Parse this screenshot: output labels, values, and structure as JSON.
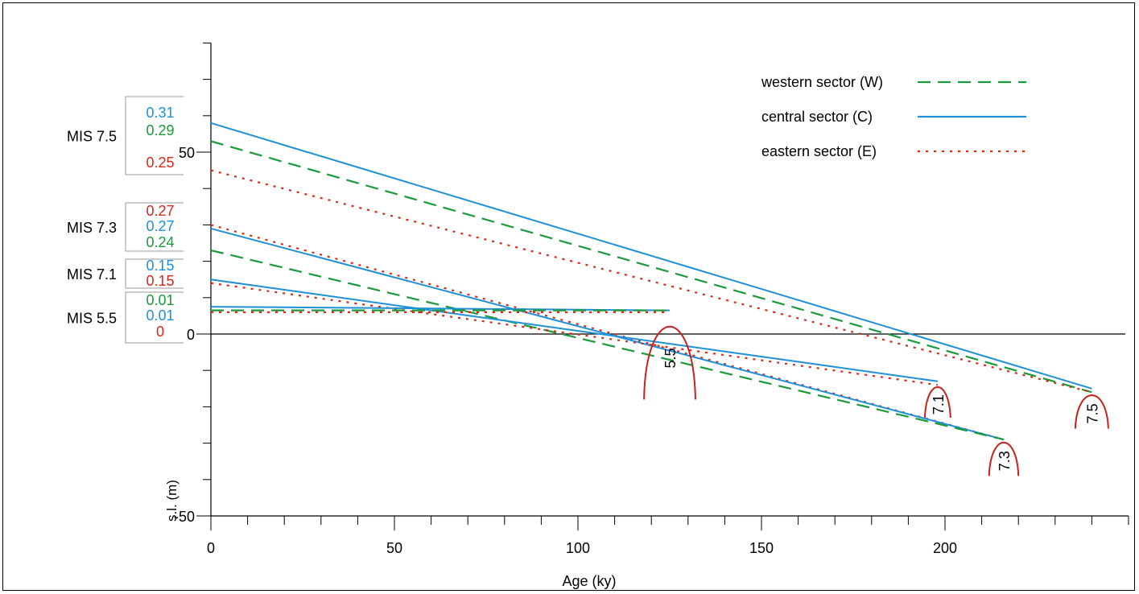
{
  "chart_data": {
    "type": "line",
    "xlabel": "Age (ky)",
    "ylabel": "s.l.  (m)",
    "xlim": [
      0,
      250
    ],
    "ylim": [
      -50,
      80
    ],
    "x_ticks": [
      0,
      50,
      100,
      150,
      200
    ],
    "y_ticks": [
      -50,
      0,
      50
    ],
    "grid": false,
    "legend_position": "top-right",
    "colors": {
      "W": "#1a9a3a",
      "C": "#1e90d8",
      "E": "#d42a1a"
    },
    "legend": [
      {
        "label": "western sector (W)",
        "key": "W",
        "style": "dashed"
      },
      {
        "label": "central sector (C)",
        "key": "C",
        "style": "solid"
      },
      {
        "label": "eastern sector (E)",
        "key": "E",
        "style": "dotted"
      }
    ],
    "series": [
      {
        "key": "C",
        "stage": "MIS 7.5",
        "points": [
          [
            0,
            58
          ],
          [
            240,
            -15
          ]
        ]
      },
      {
        "key": "W",
        "stage": "MIS 7.5",
        "points": [
          [
            0,
            53
          ],
          [
            240,
            -16
          ]
        ]
      },
      {
        "key": "E",
        "stage": "MIS 7.5",
        "points": [
          [
            0,
            45
          ],
          [
            240,
            -16
          ]
        ]
      },
      {
        "key": "E",
        "stage": "MIS 7.3",
        "points": [
          [
            0,
            30
          ],
          [
            216,
            -29
          ]
        ]
      },
      {
        "key": "C",
        "stage": "MIS 7.3",
        "points": [
          [
            0,
            29
          ],
          [
            216,
            -29
          ]
        ]
      },
      {
        "key": "W",
        "stage": "MIS 7.3",
        "points": [
          [
            0,
            23
          ],
          [
            216,
            -29
          ]
        ]
      },
      {
        "key": "C",
        "stage": "MIS 7.1",
        "points": [
          [
            0,
            15
          ],
          [
            198,
            -13
          ]
        ]
      },
      {
        "key": "E",
        "stage": "MIS 7.1",
        "points": [
          [
            0,
            14
          ],
          [
            198,
            -14
          ]
        ]
      },
      {
        "key": "C",
        "stage": "MIS 5.5",
        "points": [
          [
            0,
            7.5
          ],
          [
            125,
            6.5
          ]
        ]
      },
      {
        "key": "W",
        "stage": "MIS 5.5",
        "points": [
          [
            0,
            6.5
          ],
          [
            125,
            6.5
          ]
        ]
      },
      {
        "key": "E",
        "stage": "MIS 5.5",
        "points": [
          [
            0,
            6
          ],
          [
            125,
            6
          ]
        ]
      }
    ],
    "peaks": [
      {
        "label": "5.5",
        "x": 125,
        "y": 6.5,
        "halfwidth": 7,
        "base": -18
      },
      {
        "label": "7.1",
        "x": 198,
        "y": -14,
        "halfwidth": 3.5,
        "base": -23
      },
      {
        "label": "7.3",
        "x": 216,
        "y": -29,
        "halfwidth": 4,
        "base": -39
      },
      {
        "label": "7.5",
        "x": 240,
        "y": -16,
        "halfwidth": 4.5,
        "base": -26
      }
    ],
    "rate_boxes": [
      {
        "stage": "MIS 7.5",
        "rates": [
          {
            "value": "0.31",
            "key": "C"
          },
          {
            "value": "0.29",
            "key": "W"
          },
          {
            "value": "0.25",
            "key": "E"
          }
        ]
      },
      {
        "stage": "MIS 7.3",
        "rates": [
          {
            "value": "0.27",
            "key": "E"
          },
          {
            "value": "0.27",
            "key": "C"
          },
          {
            "value": "0.24",
            "key": "W"
          }
        ]
      },
      {
        "stage": "MIS 7.1",
        "rates": [
          {
            "value": "0.15",
            "key": "C"
          },
          {
            "value": "0.15",
            "key": "E"
          }
        ]
      },
      {
        "stage": "MIS 5.5",
        "rates": [
          {
            "value": "0.01",
            "key": "W"
          },
          {
            "value": "0.01",
            "key": "C"
          },
          {
            "value": "0",
            "key": "E"
          }
        ]
      }
    ]
  }
}
